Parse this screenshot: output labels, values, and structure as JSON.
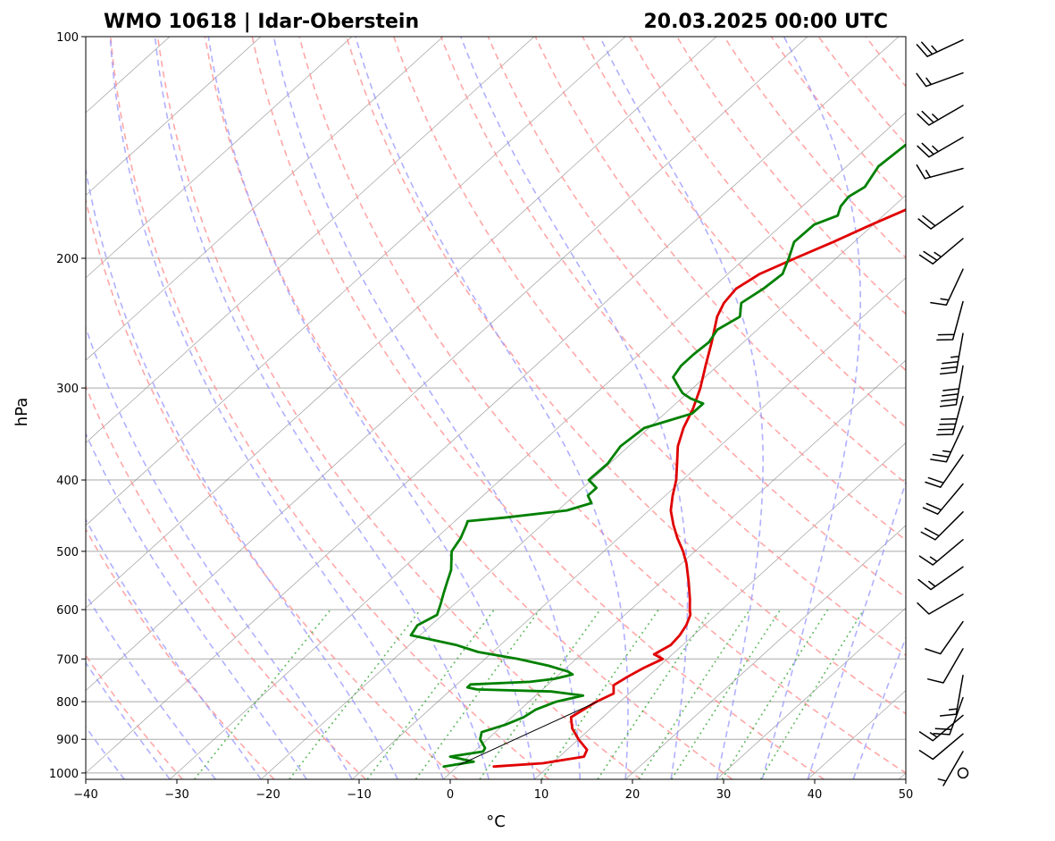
{
  "chart_data": {
    "type": "line",
    "diagram": "skew-T log-p",
    "title_left": "WMO 10618 | Idar-Oberstein",
    "title_right": "20.03.2025 00:00 UTC",
    "xlabel": "°C",
    "ylabel": "hPa",
    "xlim": [
      -40,
      50
    ],
    "ylim": [
      1020,
      100
    ],
    "y_scale": "log",
    "x_ticks": [
      -40,
      -30,
      -20,
      -10,
      0,
      10,
      20,
      30,
      40,
      50
    ],
    "x_tick_labels": [
      "−40",
      "−30",
      "−20",
      "−10",
      "0",
      "10",
      "20",
      "30",
      "40",
      "50"
    ],
    "y_ticks": [
      100,
      200,
      300,
      400,
      500,
      600,
      700,
      800,
      900,
      1000
    ],
    "y_tick_labels": [
      "100",
      "200",
      "300",
      "400",
      "500",
      "600",
      "700",
      "800",
      "900",
      "1000"
    ],
    "grid": true,
    "colors": {
      "temperature": "#e00000",
      "dewpoint": "#008000",
      "dry_adiabats": "#ff8a8a",
      "moist_adiabats": "#8f8fff",
      "mixing_ratio": "#3aa83a",
      "isotherms": "#7f7f7f",
      "isobars": "#a9a9a9",
      "parcel": "#000000",
      "barbs": "#000000"
    },
    "series": [
      {
        "key": "temperature",
        "pressure": [
          980,
          970,
          950,
          930,
          900,
          870,
          840,
          800,
          780,
          760,
          740,
          720,
          700,
          690,
          670,
          650,
          630,
          610,
          600,
          580,
          550,
          520,
          500,
          480,
          460,
          440,
          420,
          400,
          380,
          360,
          340,
          320,
          300,
          280,
          260,
          240,
          230,
          220,
          210,
          200,
          190,
          180,
          170,
          165,
          160,
          150,
          140,
          130,
          120,
          115,
          110,
          105,
          100
        ],
        "temp_c": [
          4,
          9,
          12.7,
          12.2,
          10,
          8,
          6.5,
          7.4,
          8.3,
          7.3,
          7.8,
          8.5,
          9.5,
          8,
          8.7,
          8.5,
          8,
          7.2,
          6.5,
          5.2,
          3,
          0.6,
          -1.3,
          -3.5,
          -5.6,
          -7.6,
          -9.2,
          -10.7,
          -12.6,
          -14.6,
          -16.2,
          -17.5,
          -19.2,
          -21.3,
          -23.5,
          -26,
          -26.9,
          -27.3,
          -26.5,
          -24.5,
          -22.3,
          -20.2,
          -17.8,
          -16.4,
          -16.2,
          -14.4,
          -14.3,
          -14.2,
          -14,
          -12.6,
          -10.2,
          -7,
          -5.8
        ]
      },
      {
        "key": "dewpoint",
        "pressure": [
          980,
          965,
          950,
          935,
          925,
          900,
          880,
          860,
          840,
          820,
          800,
          785,
          775,
          770,
          765,
          758,
          752,
          745,
          735,
          728,
          715,
          700,
          685,
          670,
          650,
          630,
          610,
          590,
          570,
          550,
          530,
          500,
          480,
          460,
          455,
          450,
          440,
          430,
          420,
          410,
          400,
          380,
          360,
          340,
          325,
          315,
          310,
          305,
          300,
          290,
          280,
          270,
          260,
          250,
          240,
          230,
          220,
          210,
          200,
          190,
          180,
          175,
          170,
          165,
          160,
          150,
          140,
          130,
          120,
          110,
          105,
          100
        ],
        "dewpoint_c": [
          -1.5,
          1.2,
          -2,
          1,
          0.8,
          -0.8,
          -1.5,
          0.2,
          1.3,
          1.7,
          3,
          5.2,
          1.2,
          -7.2,
          -8.5,
          -8.5,
          -2.3,
          0,
          1.5,
          0.6,
          -2.2,
          -6.4,
          -11.6,
          -14.9,
          -21,
          -21.5,
          -20.6,
          -21.5,
          -22.5,
          -23.5,
          -24.5,
          -26.7,
          -27.3,
          -28.3,
          -28.6,
          -25,
          -19,
          -17.2,
          -18.5,
          -18.5,
          -20.3,
          -20.2,
          -20.9,
          -20.5,
          -17,
          -17,
          -19,
          -20.5,
          -21.5,
          -23.5,
          -24,
          -24,
          -23.8,
          -24.4,
          -23.5,
          -25,
          -24.3,
          -24,
          -25.2,
          -26.6,
          -26.5,
          -25,
          -25.8,
          -26.1,
          -25.5,
          -26.5,
          -26.1,
          -27.2,
          -27.2,
          -26.8,
          -26.1,
          -26
        ]
      },
      {
        "key": "parcel",
        "pressure": [
          975,
          800
        ],
        "temp_c": [
          0,
          7.5
        ]
      }
    ],
    "wind_barbs": [
      {
        "p": 101,
        "speed_kt": 25,
        "dir_deg": 245
      },
      {
        "p": 112,
        "speed_kt": 15,
        "dir_deg": 250
      },
      {
        "p": 124,
        "speed_kt": 25,
        "dir_deg": 240
      },
      {
        "p": 137,
        "speed_kt": 25,
        "dir_deg": 240
      },
      {
        "p": 151,
        "speed_kt": 15,
        "dir_deg": 255
      },
      {
        "p": 170,
        "speed_kt": 20,
        "dir_deg": 235
      },
      {
        "p": 188,
        "speed_kt": 25,
        "dir_deg": 230
      },
      {
        "p": 207,
        "speed_kt": 15,
        "dir_deg": 205
      },
      {
        "p": 229,
        "speed_kt": 20,
        "dir_deg": 195
      },
      {
        "p": 253,
        "speed_kt": 35,
        "dir_deg": 190
      },
      {
        "p": 280,
        "speed_kt": 40,
        "dir_deg": 190
      },
      {
        "p": 308,
        "speed_kt": 40,
        "dir_deg": 195
      },
      {
        "p": 338,
        "speed_kt": 25,
        "dir_deg": 205
      },
      {
        "p": 370,
        "speed_kt": 20,
        "dir_deg": 215
      },
      {
        "p": 405,
        "speed_kt": 20,
        "dir_deg": 220
      },
      {
        "p": 442,
        "speed_kt": 20,
        "dir_deg": 225
      },
      {
        "p": 482,
        "speed_kt": 15,
        "dir_deg": 230
      },
      {
        "p": 525,
        "speed_kt": 15,
        "dir_deg": 235
      },
      {
        "p": 572,
        "speed_kt": 10,
        "dir_deg": 240
      },
      {
        "p": 623,
        "speed_kt": 10,
        "dir_deg": 215
      },
      {
        "p": 678,
        "speed_kt": 10,
        "dir_deg": 210
      },
      {
        "p": 737,
        "speed_kt": 15,
        "dir_deg": 190
      },
      {
        "p": 790,
        "speed_kt": 20,
        "dir_deg": 200
      },
      {
        "p": 835,
        "speed_kt": 15,
        "dir_deg": 230
      },
      {
        "p": 885,
        "speed_kt": 10,
        "dir_deg": 230
      },
      {
        "p": 935,
        "speed_kt": 5,
        "dir_deg": 210
      },
      {
        "p": 1000,
        "speed_kt": 0,
        "dir_deg": 0
      }
    ]
  }
}
